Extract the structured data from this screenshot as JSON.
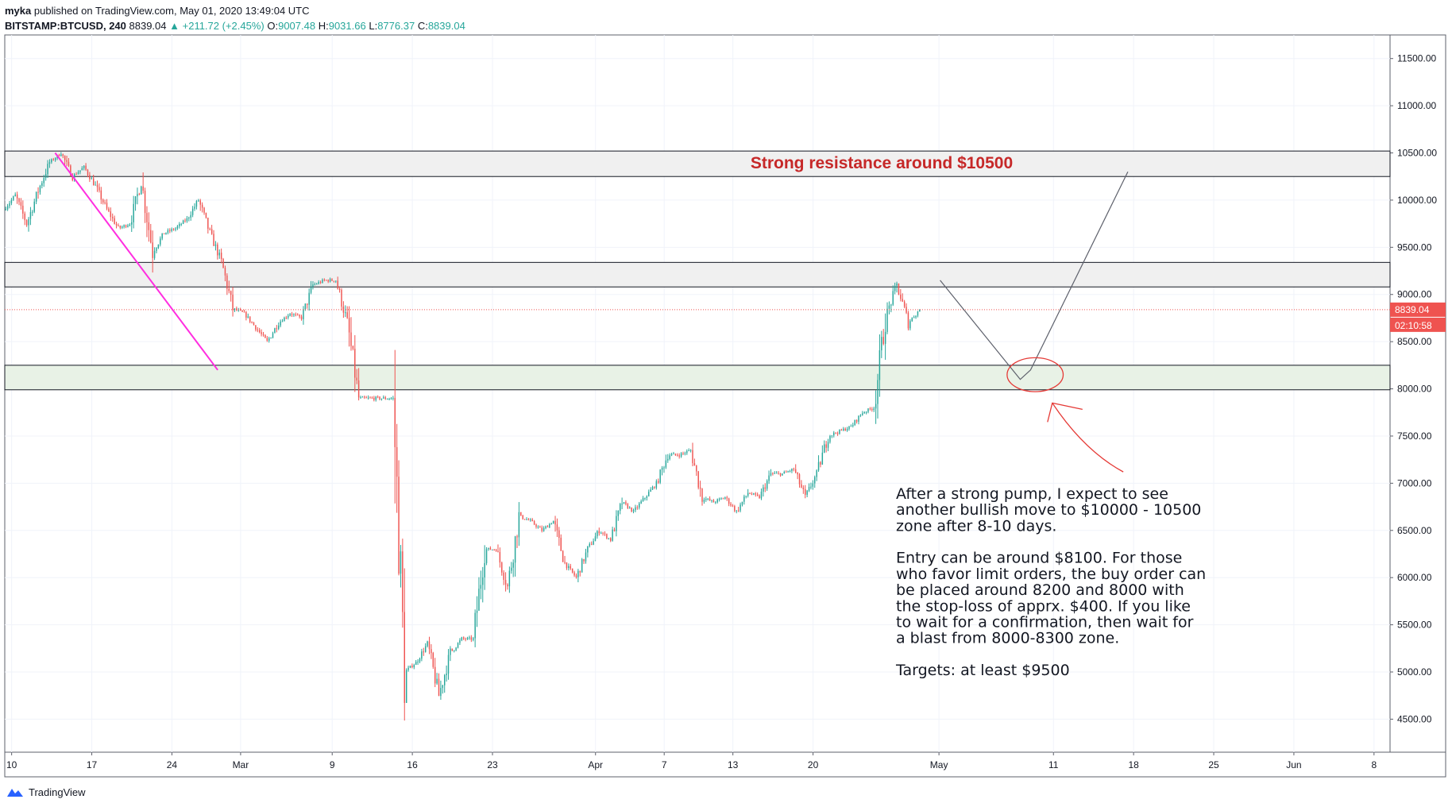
{
  "header": {
    "author": "myka",
    "published": "published on TradingView.com, May 01, 2020 13:49:04 UTC",
    "symbol": "BITSTAMP:BTCUSD, 240",
    "last": "8839.04",
    "change": "▲ +211.72 (+2.45%)",
    "o_label": "O:",
    "o": "9007.48",
    "h_label": "H:",
    "h": "9031.66",
    "l_label": "L:",
    "l": "8776.37",
    "c_label": "C:",
    "c": "8839.04"
  },
  "colors": {
    "up": "#26a69a",
    "down": "#ef5350",
    "zone_gray": "#f0f0f0",
    "zone_green": "#e8f2e6",
    "trendline": "#ff2ee0",
    "annotation_red": "#e53935",
    "title_red": "#c62828",
    "price_tag": "#ef5350"
  },
  "footer": {
    "brand": "TradingView",
    "logo_icon": "tradingview-logo-icon"
  },
  "chart_data": {
    "type": "candlestick",
    "symbol": "BITSTAMP:BTCUSD",
    "timeframe": "240",
    "ylim": [
      4150,
      11750
    ],
    "y_ticks": [
      "11500.00",
      "11000.00",
      "10500.00",
      "10000.00",
      "9500.00",
      "9000.00",
      "8500.00",
      "8000.00",
      "7500.00",
      "7000.00",
      "6500.00",
      "6000.00",
      "5500.00",
      "5000.00",
      "4500.00"
    ],
    "y_tick_values": [
      11500,
      11000,
      10500,
      10000,
      9500,
      9000,
      8500,
      8000,
      7500,
      7000,
      6500,
      6000,
      5500,
      5000,
      4500
    ],
    "x_domain_days": [
      0,
      121
    ],
    "x_ticks": [
      {
        "label": "10",
        "day": 0.6
      },
      {
        "label": "17",
        "day": 7.6
      },
      {
        "label": "24",
        "day": 14.6
      },
      {
        "label": "Mar",
        "day": 20.6
      },
      {
        "label": "9",
        "day": 28.6
      },
      {
        "label": "16",
        "day": 35.6
      },
      {
        "label": "23",
        "day": 42.6
      },
      {
        "label": "Apr",
        "day": 51.6
      },
      {
        "label": "7",
        "day": 57.6
      },
      {
        "label": "13",
        "day": 63.6
      },
      {
        "label": "20",
        "day": 70.6
      },
      {
        "label": "May",
        "day": 81.6
      },
      {
        "label": "11",
        "day": 91.6
      },
      {
        "label": "18",
        "day": 98.6
      },
      {
        "label": "25",
        "day": 105.6
      },
      {
        "label": "Jun",
        "day": 112.6
      },
      {
        "label": "8",
        "day": 119.6
      }
    ],
    "last_price": 8839.04,
    "last_price_label": "8839.04",
    "countdown_label": "02:10:58",
    "price_path": [
      [
        0,
        9900
      ],
      [
        1,
        10050
      ],
      [
        2,
        9750
      ],
      [
        3,
        10100
      ],
      [
        4,
        10400
      ],
      [
        5,
        10500
      ],
      [
        6,
        10250
      ],
      [
        7,
        10350
      ],
      [
        8,
        10150
      ],
      [
        9,
        9900
      ],
      [
        10,
        9700
      ],
      [
        11,
        9750
      ],
      [
        12,
        10200
      ],
      [
        13,
        9450
      ],
      [
        14,
        9650
      ],
      [
        15,
        9700
      ],
      [
        16,
        9800
      ],
      [
        17,
        10000
      ],
      [
        18,
        9650
      ],
      [
        19,
        9350
      ],
      [
        20,
        8850
      ],
      [
        21,
        8800
      ],
      [
        22,
        8650
      ],
      [
        23,
        8500
      ],
      [
        24,
        8700
      ],
      [
        25,
        8800
      ],
      [
        26,
        8750
      ],
      [
        27,
        9100
      ],
      [
        28,
        9150
      ],
      [
        29,
        9150
      ],
      [
        30,
        8700
      ],
      [
        31,
        7900
      ],
      [
        32,
        7900
      ],
      [
        33,
        7900
      ],
      [
        34,
        7900
      ],
      [
        35,
        5000
      ],
      [
        36,
        5100
      ],
      [
        37,
        5300
      ],
      [
        38,
        4750
      ],
      [
        39,
        5200
      ],
      [
        40,
        5350
      ],
      [
        41,
        5350
      ],
      [
        42,
        6300
      ],
      [
        43,
        6300
      ],
      [
        44,
        5900
      ],
      [
        45,
        6650
      ],
      [
        46,
        6600
      ],
      [
        47,
        6500
      ],
      [
        48,
        6600
      ],
      [
        49,
        6150
      ],
      [
        50,
        6000
      ],
      [
        51,
        6300
      ],
      [
        52,
        6500
      ],
      [
        53,
        6400
      ],
      [
        54,
        6800
      ],
      [
        55,
        6700
      ],
      [
        56,
        6850
      ],
      [
        57,
        7000
      ],
      [
        58,
        7300
      ],
      [
        59,
        7300
      ],
      [
        60,
        7350
      ],
      [
        61,
        6850
      ],
      [
        62,
        6800
      ],
      [
        63,
        6850
      ],
      [
        64,
        6700
      ],
      [
        65,
        6900
      ],
      [
        66,
        6850
      ],
      [
        67,
        7100
      ],
      [
        68,
        7100
      ],
      [
        69,
        7150
      ],
      [
        70,
        6850
      ],
      [
        71,
        7100
      ],
      [
        72,
        7500
      ],
      [
        73,
        7550
      ],
      [
        74,
        7600
      ],
      [
        75,
        7750
      ],
      [
        76,
        7800
      ],
      [
        77,
        8750
      ],
      [
        78,
        9100
      ],
      [
        79,
        8700
      ],
      [
        80,
        8839.04
      ]
    ],
    "zones": [
      {
        "from": 10250,
        "to": 10520,
        "style": "gray"
      },
      {
        "from": 9080,
        "to": 9340,
        "style": "gray"
      },
      {
        "from": 7990,
        "to": 8250,
        "style": "green"
      }
    ],
    "trendline": [
      [
        4.4,
        10500
      ],
      [
        18.6,
        8200
      ]
    ],
    "projection": [
      [
        81.7,
        9150
      ],
      [
        88.7,
        8100
      ],
      [
        89.6,
        8200
      ],
      [
        98.1,
        10300
      ]
    ],
    "target_circle": {
      "cx_day": 90.0,
      "cy": 8150,
      "rx_days": 2.45,
      "ry": 180
    },
    "arrow": {
      "tip": [
        91.5,
        7850
      ],
      "tail": [
        97.7,
        7120
      ]
    },
    "title": "Strong resistance around $10500",
    "note": [
      "After a strong pump, I expect to see",
      "another bullish move to $10000 - 10500",
      "zone after 8-10 days.",
      "",
      "Entry can be around $8100. For those",
      "who favor limit orders, the buy order can",
      "be placed around 8200 and 8000 with",
      "the stop-loss of apprx. $400. If you like",
      "to wait for a confirmation, then wait for",
      "a blast from 8000-8300 zone.",
      "",
      "Targets: at least $9500"
    ]
  }
}
